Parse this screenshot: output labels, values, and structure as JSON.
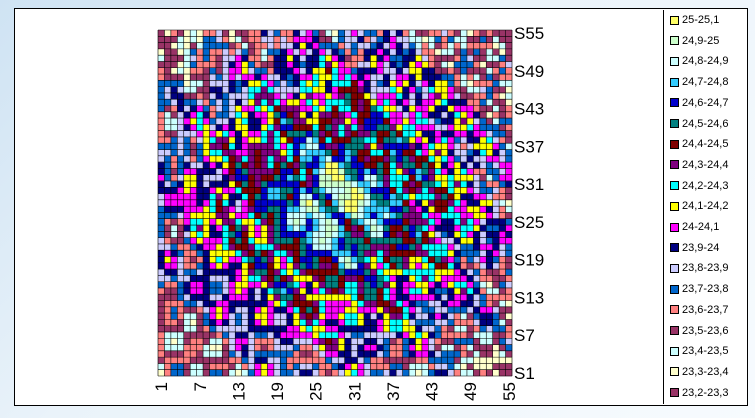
{
  "chart_data": {
    "type": "heatmap",
    "title": "",
    "xlabel": "",
    "ylabel": "",
    "grid": true,
    "legend_placement": "right",
    "x_ticks": [
      "1",
      "7",
      "13",
      "19",
      "25",
      "31",
      "37",
      "43",
      "49",
      "55"
    ],
    "y_ticks": [
      "S1",
      "S7",
      "S13",
      "S19",
      "S25",
      "S31",
      "S37",
      "S43",
      "S49",
      "S55"
    ],
    "x_range": [
      1,
      55
    ],
    "y_range": [
      1,
      55
    ],
    "note_values": "surface / contour of a 55x55 grid; centre highest (~24.6-25), edges lower (~23.3-24.3)",
    "legend": [
      {
        "label": "25-25,1",
        "color": "#ffff66"
      },
      {
        "label": "24,9-25",
        "color": "#ccffcc"
      },
      {
        "label": "24,8-24,9",
        "color": "#ccffff"
      },
      {
        "label": "24,7-24,8",
        "color": "#33ccff"
      },
      {
        "label": "24,6-24,7",
        "color": "#0000cc"
      },
      {
        "label": "24,5-24,6",
        "color": "#008080"
      },
      {
        "label": "24,4-24,5",
        "color": "#800000"
      },
      {
        "label": "24,3-24,4",
        "color": "#800080"
      },
      {
        "label": "24,2-24,3",
        "color": "#00ffff"
      },
      {
        "label": "24,1-24,2",
        "color": "#ffff00"
      },
      {
        "label": "24-24,1",
        "color": "#ff00ff"
      },
      {
        "label": "23,9-24",
        "color": "#000080"
      },
      {
        "label": "23,8-23,9",
        "color": "#ccccff"
      },
      {
        "label": "23,7-23,8",
        "color": "#0066cc"
      },
      {
        "label": "23,6-23,7",
        "color": "#ff8080"
      },
      {
        "label": "23,5-23,6",
        "color": "#993366"
      },
      {
        "label": "23,4-23,5",
        "color": "#ccffff"
      },
      {
        "label": "23,3-23,4",
        "color": "#ffffcc"
      },
      {
        "label": "23,2-23,3",
        "color": "#993366"
      }
    ]
  }
}
